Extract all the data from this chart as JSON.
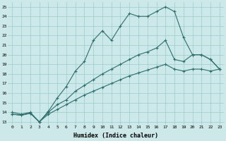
{
  "xlabel": "Humidex (Indice chaleur)",
  "bg_color": "#cce8e8",
  "grid_color": "#99cccc",
  "line_color": "#2d6e6e",
  "xmin": 0,
  "xmax": 23,
  "ymin": 13,
  "ymax": 25,
  "xticks": [
    0,
    1,
    2,
    3,
    4,
    5,
    6,
    7,
    8,
    9,
    10,
    11,
    12,
    13,
    14,
    15,
    16,
    17,
    18,
    19,
    20,
    21,
    22,
    23
  ],
  "yticks": [
    13,
    14,
    15,
    16,
    17,
    18,
    19,
    20,
    21,
    22,
    23,
    24,
    25
  ],
  "line1_x": [
    0,
    1,
    2,
    3,
    4,
    5,
    6,
    7,
    8,
    9,
    10,
    11,
    12,
    13,
    14,
    15,
    16,
    17,
    18,
    19,
    20,
    21,
    22,
    23
  ],
  "line1_y": [
    14.0,
    13.8,
    14.0,
    13.0,
    14.1,
    15.5,
    16.7,
    18.3,
    19.3,
    21.5,
    22.5,
    21.5,
    23.0,
    24.3,
    24.0,
    24.0,
    24.5,
    25.0,
    24.5,
    21.8,
    20.0,
    20.0,
    19.5,
    18.5
  ],
  "line2_x": [
    0,
    1,
    2,
    3,
    4,
    5,
    6,
    7,
    8,
    9,
    10,
    11,
    12,
    13,
    14,
    15,
    16,
    17,
    18,
    19,
    20,
    21,
    22,
    23
  ],
  "line2_y": [
    13.8,
    13.7,
    13.9,
    13.0,
    14.0,
    14.8,
    15.3,
    16.2,
    16.8,
    17.4,
    18.0,
    18.5,
    19.0,
    19.5,
    20.0,
    20.3,
    20.7,
    21.5,
    19.5,
    19.3,
    20.0,
    20.0,
    19.5,
    18.5
  ],
  "line3_x": [
    0,
    1,
    2,
    3,
    4,
    5,
    6,
    7,
    8,
    9,
    10,
    11,
    12,
    13,
    14,
    15,
    16,
    17,
    18,
    19,
    20,
    21,
    22,
    23
  ],
  "line3_y": [
    13.8,
    13.7,
    13.9,
    13.0,
    13.8,
    14.3,
    14.8,
    15.3,
    15.8,
    16.2,
    16.6,
    17.0,
    17.4,
    17.8,
    18.1,
    18.4,
    18.7,
    19.0,
    18.5,
    18.3,
    18.5,
    18.5,
    18.3,
    18.5
  ]
}
